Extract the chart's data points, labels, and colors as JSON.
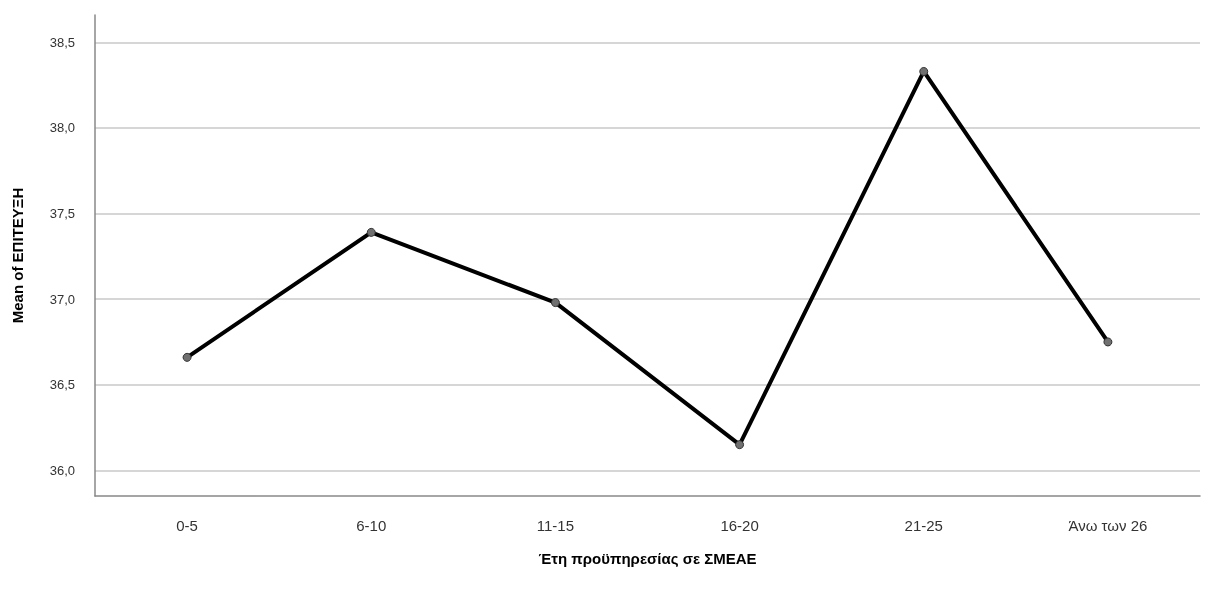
{
  "chart_data": {
    "type": "line",
    "xlabel": "Έτη προϋπηρεσίας σε ΣΜΕΑΕ",
    "ylabel": "Mean of ΕΠΙΤΕΥΞΗ",
    "categories": [
      "0-5",
      "6-10",
      "11-15",
      "16-20",
      "21-25",
      "Άνω των 26"
    ],
    "series": [
      {
        "color": "#000000",
        "values": [
          36.66,
          37.39,
          36.98,
          36.15,
          38.33,
          36.75
        ]
      }
    ],
    "ylim": [
      35.85,
      38.66
    ],
    "yticks": [
      {
        "value": 36.0,
        "label": "36,0"
      },
      {
        "value": 36.5,
        "label": "36,5"
      },
      {
        "value": 37.0,
        "label": "37,0"
      },
      {
        "value": 37.5,
        "label": "37,5"
      },
      {
        "value": 38.0,
        "label": "38,0"
      },
      {
        "value": 38.5,
        "label": "38,5"
      }
    ],
    "grid": "y",
    "marker": "circle",
    "line_style": "solid"
  }
}
